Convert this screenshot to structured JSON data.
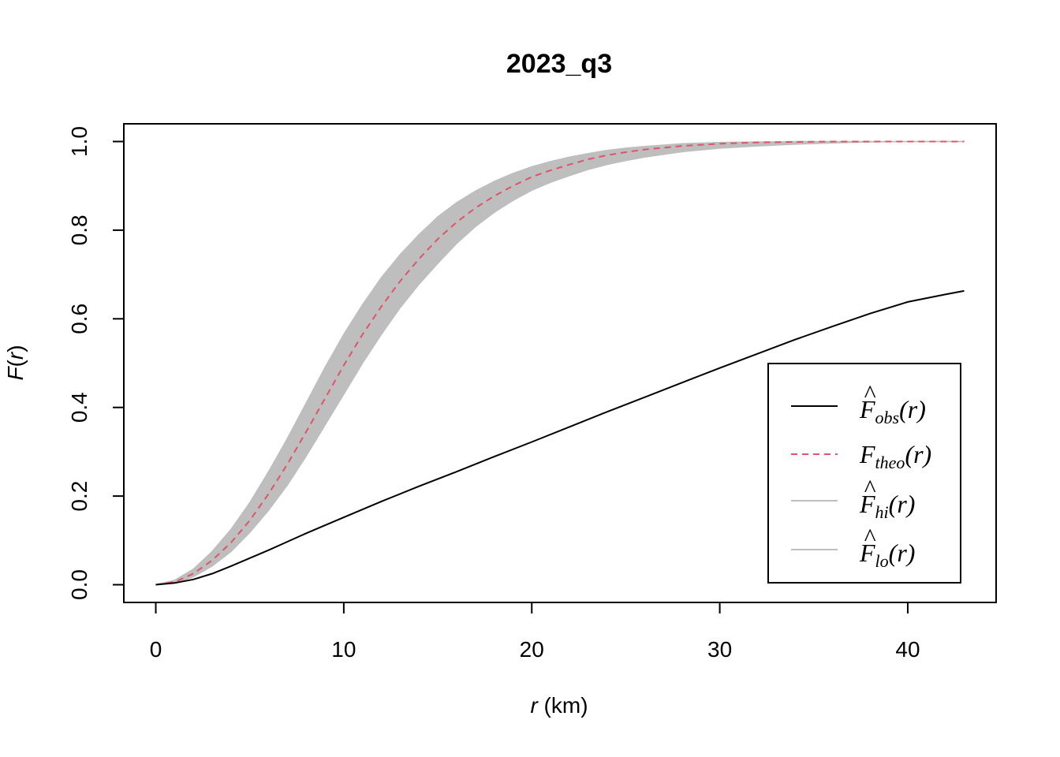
{
  "chart_data": {
    "type": "line",
    "title": "2023_q3",
    "xlabel_var": "r",
    "xlabel_unit": " (km)",
    "ylabel_var": "F",
    "ylabel_paren_open": "(",
    "ylabel_arg": "r",
    "ylabel_paren_close": ")",
    "xlim": [
      -1.7,
      44.7
    ],
    "ylim": [
      -0.04,
      1.04
    ],
    "x_ticks": [
      0,
      10,
      20,
      30,
      40
    ],
    "x_tick_labels": [
      "0",
      "10",
      "20",
      "30",
      "40"
    ],
    "y_ticks": [
      0.0,
      0.2,
      0.4,
      0.6,
      0.8,
      1.0
    ],
    "y_tick_labels": [
      "0.0",
      "0.2",
      "0.4",
      "0.6",
      "0.8",
      "1.0"
    ],
    "legend_position": "bottom-right",
    "colors": {
      "obs": "#000000",
      "theo": "#DF536B",
      "envelope": "#BEBEBE"
    },
    "series": [
      {
        "id": "obs",
        "name_main": "F",
        "name_sub": "obs",
        "name_arg": "(r)",
        "hat": true,
        "style": "solid",
        "x": [
          0,
          1,
          2,
          3,
          4,
          5,
          6,
          7,
          8,
          9,
          10,
          12,
          14,
          16,
          18,
          20,
          22,
          24,
          26,
          28,
          30,
          32,
          34,
          36,
          38,
          40,
          42,
          43
        ],
        "values": [
          0.0,
          0.004,
          0.012,
          0.025,
          0.042,
          0.06,
          0.078,
          0.097,
          0.116,
          0.134,
          0.152,
          0.188,
          0.222,
          0.255,
          0.289,
          0.322,
          0.356,
          0.39,
          0.423,
          0.456,
          0.489,
          0.521,
          0.553,
          0.583,
          0.612,
          0.638,
          0.655,
          0.663
        ]
      },
      {
        "id": "theo",
        "name_main": "F",
        "name_sub": "theo",
        "name_arg": "(r)",
        "hat": false,
        "style": "dashed",
        "x": [
          0,
          1,
          2,
          3,
          4,
          5,
          6,
          7,
          8,
          9,
          10,
          11,
          12,
          13,
          14,
          15,
          16,
          17,
          18,
          19,
          20,
          21,
          22,
          23,
          24,
          25,
          26,
          28,
          30,
          32,
          34,
          36,
          38,
          40,
          43
        ],
        "values": [
          0.0,
          0.006,
          0.025,
          0.055,
          0.095,
          0.145,
          0.205,
          0.272,
          0.345,
          0.42,
          0.495,
          0.565,
          0.628,
          0.685,
          0.735,
          0.78,
          0.818,
          0.85,
          0.877,
          0.9,
          0.92,
          0.935,
          0.948,
          0.96,
          0.969,
          0.976,
          0.982,
          0.99,
          0.995,
          0.998,
          0.999,
          1.0,
          1.0,
          1.0,
          1.0
        ]
      },
      {
        "id": "hi",
        "name_main": "F",
        "name_sub": "hi",
        "name_arg": "(r)",
        "hat": true,
        "style": "band-upper",
        "x": [
          0,
          1,
          2,
          3,
          4,
          5,
          6,
          7,
          8,
          9,
          10,
          11,
          12,
          13,
          14,
          15,
          16,
          17,
          18,
          19,
          20,
          21,
          22,
          23,
          24,
          25,
          26,
          28,
          30,
          32,
          34,
          36,
          38,
          40,
          43
        ],
        "values": [
          0.0,
          0.01,
          0.035,
          0.075,
          0.125,
          0.185,
          0.255,
          0.33,
          0.41,
          0.49,
          0.565,
          0.632,
          0.693,
          0.745,
          0.79,
          0.83,
          0.862,
          0.888,
          0.91,
          0.928,
          0.943,
          0.955,
          0.965,
          0.973,
          0.98,
          0.985,
          0.989,
          0.995,
          0.998,
          0.999,
          1.0,
          1.0,
          1.0,
          1.0,
          1.0
        ]
      },
      {
        "id": "lo",
        "name_main": "F",
        "name_sub": "lo",
        "name_arg": "(r)",
        "hat": true,
        "style": "band-lower",
        "x": [
          0,
          1,
          2,
          3,
          4,
          5,
          6,
          7,
          8,
          9,
          10,
          11,
          12,
          13,
          14,
          15,
          16,
          17,
          18,
          19,
          20,
          21,
          22,
          23,
          24,
          25,
          26,
          28,
          30,
          32,
          34,
          36,
          38,
          40,
          43
        ],
        "values": [
          0.0,
          0.003,
          0.018,
          0.042,
          0.075,
          0.118,
          0.168,
          0.225,
          0.29,
          0.36,
          0.43,
          0.5,
          0.565,
          0.625,
          0.678,
          0.725,
          0.77,
          0.808,
          0.84,
          0.867,
          0.89,
          0.908,
          0.923,
          0.937,
          0.948,
          0.957,
          0.965,
          0.977,
          0.985,
          0.99,
          0.994,
          0.997,
          0.999,
          1.0,
          1.0
        ]
      }
    ]
  }
}
